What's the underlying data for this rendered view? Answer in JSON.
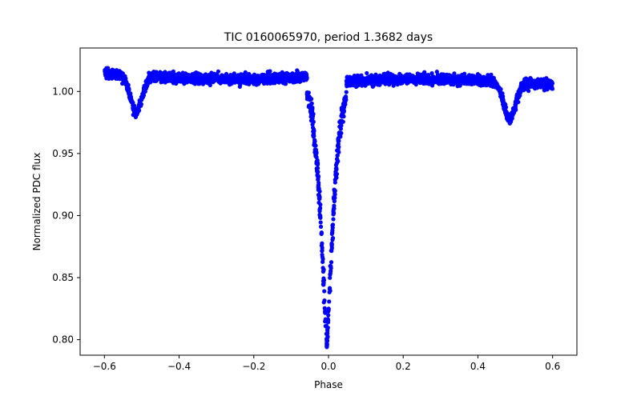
{
  "chart_data": {
    "type": "scatter",
    "title": "TIC 0160065970, period 1.3682 days",
    "xlabel": "Phase",
    "ylabel": "Normalized PDC flux",
    "xlim": [
      -0.665,
      0.665
    ],
    "ylim": [
      0.7875,
      1.035
    ],
    "xticks": [
      -0.6,
      -0.4,
      -0.2,
      0.0,
      0.2,
      0.4,
      0.6
    ],
    "xtick_labels": [
      "−0.6",
      "−0.4",
      "−0.2",
      "0.0",
      "0.2",
      "0.4",
      "0.6"
    ],
    "yticks": [
      0.8,
      0.85,
      0.9,
      0.95,
      1.0
    ],
    "ytick_labels": [
      "0.80",
      "0.85",
      "0.90",
      "0.95",
      "1.00"
    ],
    "grid": false,
    "series": [
      {
        "name": "PDC flux",
        "color": "#0000ff",
        "marker": "circle",
        "x_range": [
          -0.6,
          0.6
        ],
        "baseline_before_primary": 1.013,
        "baseline_after_primary": 1.007,
        "scatter": 0.0045,
        "primary_eclipse": {
          "center": -0.005,
          "depth": 0.212,
          "width": 0.024
        },
        "secondary_eclipse": {
          "centers": [
            -0.515,
            0.485
          ],
          "depth": 0.03,
          "width": 0.022
        }
      }
    ]
  }
}
